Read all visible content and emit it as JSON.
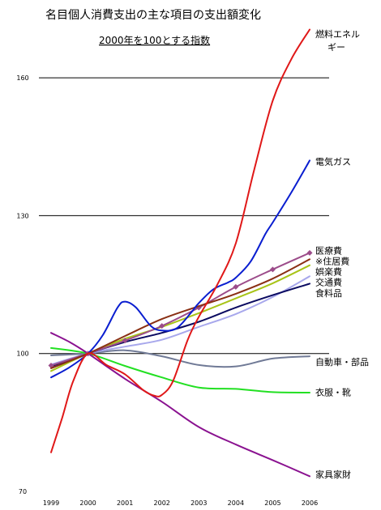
{
  "chart_data": {
    "type": "line",
    "title": "名目個人消費支出の主な項目の支出額変化",
    "subtitle": "2000年を100とする指数",
    "xlabel": "",
    "ylabel": "",
    "x_ticks": [
      "1999",
      "2000",
      "2001",
      "2002",
      "2003",
      "2004",
      "2005",
      "2006"
    ],
    "xlim": [
      1999,
      2006
    ],
    "y_ticks": [
      70,
      100,
      130,
      160
    ],
    "ylim": [
      70,
      172
    ],
    "grid": "horizontal",
    "legend": "inline-right",
    "series": [
      {
        "name": "燃料エネルギー",
        "color": "#e01818",
        "labelY": 169.5,
        "labelLines": [
          "燃料エネル",
          "ギー"
        ],
        "points": [
          [
            1999,
            78.5
          ],
          [
            1999.3,
            86
          ],
          [
            1999.6,
            94
          ],
          [
            2000,
            100
          ],
          [
            2000.5,
            97.5
          ],
          [
            2001,
            95.5
          ],
          [
            2001.5,
            92
          ],
          [
            2001.8,
            90.8
          ],
          [
            2002,
            91
          ],
          [
            2002.3,
            94
          ],
          [
            2002.7,
            103
          ],
          [
            2003,
            108
          ],
          [
            2003.5,
            115
          ],
          [
            2004,
            124
          ],
          [
            2004.5,
            140
          ],
          [
            2005,
            155
          ],
          [
            2005.5,
            164
          ],
          [
            2006,
            170.5
          ]
        ]
      },
      {
        "name": "電気ガス",
        "color": "#0a1ed0",
        "labelY": 141.8,
        "labelLines": [
          "電気ガス"
        ],
        "points": [
          [
            1999,
            94.8
          ],
          [
            1999.5,
            97
          ],
          [
            2000,
            100
          ],
          [
            2000.4,
            104
          ],
          [
            2000.8,
            110
          ],
          [
            2001,
            111.3
          ],
          [
            2001.3,
            110
          ],
          [
            2001.7,
            106
          ],
          [
            2002,
            105
          ],
          [
            2002.4,
            105.5
          ],
          [
            2002.8,
            109
          ],
          [
            2003,
            111
          ],
          [
            2003.4,
            114
          ],
          [
            2003.8,
            115.5
          ],
          [
            2004,
            116.5
          ],
          [
            2004.4,
            120
          ],
          [
            2004.8,
            126
          ],
          [
            2005,
            128.5
          ],
          [
            2005.5,
            135
          ],
          [
            2006,
            142
          ]
        ]
      },
      {
        "name": "医療費",
        "color": "#8a3014",
        "labelY": 122.4,
        "labelLines": [
          "医療費"
        ],
        "points": [
          [
            1999,
            96.8
          ],
          [
            2000,
            100
          ],
          [
            2001,
            103.8
          ],
          [
            2002,
            107.5
          ],
          [
            2003,
            110.3
          ],
          [
            2004,
            113
          ],
          [
            2005,
            116.3
          ],
          [
            2006,
            120.5
          ]
        ]
      },
      {
        "name": "※住居費",
        "color": "#9c4c8a",
        "marker": true,
        "labelY": 120.1,
        "labelLines": [
          "※住居費"
        ],
        "points": [
          [
            1999,
            97.4
          ],
          [
            2000,
            100
          ],
          [
            2001,
            102.8
          ],
          [
            2002,
            106
          ],
          [
            2003,
            110
          ],
          [
            2004,
            114.5
          ],
          [
            2005,
            118.3
          ],
          [
            2006,
            121.9
          ]
        ]
      },
      {
        "name": "娯楽費",
        "color": "#a8c418",
        "labelY": 117.8,
        "labelLines": [
          "娯楽費"
        ],
        "points": [
          [
            1999,
            96.2
          ],
          [
            2000,
            100
          ],
          [
            2001,
            103.2
          ],
          [
            2002,
            105.8
          ],
          [
            2003,
            108.8
          ],
          [
            2004,
            112
          ],
          [
            2005,
            115.3
          ],
          [
            2006,
            119.2
          ]
        ]
      },
      {
        "name": "交通費",
        "color": "#a8a8ec",
        "labelY": 115.5,
        "labelLines": [
          "交通費"
        ],
        "points": [
          [
            1999,
            97.6
          ],
          [
            2000,
            100
          ],
          [
            2001,
            101.5
          ],
          [
            2002,
            103
          ],
          [
            2003,
            105.8
          ],
          [
            2004,
            108.6
          ],
          [
            2005,
            112.3
          ],
          [
            2006,
            116.8
          ]
        ]
      },
      {
        "name": "食料品",
        "color": "#0a0a60",
        "labelY": 113.2,
        "labelLines": [
          "食料品"
        ],
        "points": [
          [
            1999,
            97.2
          ],
          [
            2000,
            100
          ],
          [
            2001,
            102.5
          ],
          [
            2002,
            104.5
          ],
          [
            2003,
            106.9
          ],
          [
            2004,
            110
          ],
          [
            2005,
            112.7
          ],
          [
            2006,
            115.2
          ]
        ]
      },
      {
        "name": "自動車・部品",
        "color": "#707a96",
        "labelY": 98.2,
        "labelLines": [
          "自動車・部品"
        ],
        "points": [
          [
            1999,
            99.6
          ],
          [
            2000,
            100
          ],
          [
            2001,
            100.7
          ],
          [
            2002,
            99.4
          ],
          [
            2003,
            97.5
          ],
          [
            2004,
            97.2
          ],
          [
            2005,
            98.9
          ],
          [
            2006,
            99.4
          ]
        ]
      },
      {
        "name": "衣服・靴",
        "color": "#22e022",
        "labelY": 91.6,
        "labelLines": [
          "衣服・靴"
        ],
        "points": [
          [
            1999,
            101.2
          ],
          [
            2000,
            100
          ],
          [
            2001,
            97.3
          ],
          [
            2002,
            94.8
          ],
          [
            2003,
            92.6
          ],
          [
            2004,
            92.3
          ],
          [
            2005,
            91.6
          ],
          [
            2006,
            91.5
          ]
        ]
      },
      {
        "name": "家具家財",
        "color": "#8a1290",
        "labelY": 73.7,
        "labelLines": [
          "家具家財"
        ],
        "points": [
          [
            1999,
            104.5
          ],
          [
            1999.5,
            102.5
          ],
          [
            2000,
            100
          ],
          [
            2001,
            94.5
          ],
          [
            2002,
            89.5
          ],
          [
            2003,
            84
          ],
          [
            2004,
            80.2
          ],
          [
            2005,
            76.8
          ],
          [
            2006,
            73.3
          ]
        ]
      }
    ]
  }
}
